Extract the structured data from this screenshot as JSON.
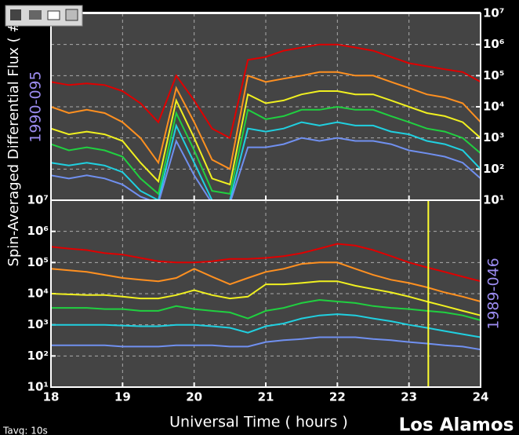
{
  "chart_data": [
    {
      "type": "line",
      "ylabel": "Spin-Averaged Differential Flux   ( #/",
      "label": "1990-095",
      "label_color": "#9c8cf0",
      "label_side": "left",
      "yscale": "log",
      "yaxis_side": "right",
      "grid": true,
      "show_xtick_labels": false,
      "xlim": [
        18,
        24
      ],
      "xticks": [
        18,
        19,
        20,
        21,
        22,
        23,
        24
      ],
      "ylim": [
        10,
        10000000
      ],
      "yticks": [
        {
          "value": 10,
          "label": "10¹"
        },
        {
          "value": 100,
          "label": "10²"
        },
        {
          "value": 1000,
          "label": "10³"
        },
        {
          "value": 10000,
          "label": "10⁴"
        },
        {
          "value": 100000,
          "label": "10⁵"
        },
        {
          "value": 1000000,
          "label": "10⁶"
        },
        {
          "value": 10000000,
          "label": "10⁷"
        }
      ],
      "x": [
        18,
        18.25,
        18.5,
        18.75,
        19,
        19.25,
        19.5,
        19.75,
        20,
        20.25,
        20.5,
        20.75,
        21,
        21.25,
        21.5,
        21.75,
        22,
        22.25,
        22.5,
        22.75,
        23,
        23.25,
        23.5,
        23.75,
        24
      ],
      "series": [
        {
          "color": "#e00000",
          "values": [
            63000.0,
            50000.0,
            56000.0,
            50000.0,
            32000.0,
            13000.0,
            3200.0,
            100000.0,
            16000.0,
            2000.0,
            1000.0,
            320000.0,
            400000.0,
            630000.0,
            800000.0,
            1000000.0,
            1000000.0,
            800000.0,
            630000.0,
            400000.0,
            250000.0,
            200000.0,
            160000.0,
            130000.0,
            63000.0
          ]
        },
        {
          "color": "#ff9020",
          "values": [
            10000.0,
            6300.0,
            8000.0,
            6300.0,
            3200.0,
            1000.0,
            160,
            40000.0,
            3200.0,
            200,
            100,
            100000.0,
            63000.0,
            80000.0,
            100000.0,
            130000.0,
            130000.0,
            100000.0,
            100000.0,
            63000.0,
            40000.0,
            25000.0,
            20000.0,
            13000.0,
            3200.0
          ]
        },
        {
          "color": "#f0f020",
          "values": [
            2000.0,
            1300.0,
            1600.0,
            1300.0,
            800,
            160,
            40,
            16000.0,
            1000.0,
            50,
            32,
            25000.0,
            13000.0,
            16000.0,
            25000.0,
            32000.0,
            32000.0,
            25000.0,
            25000.0,
            16000.0,
            10000.0,
            6300.0,
            5000.0,
            3200.0,
            1000.0
          ]
        },
        {
          "color": "#20d040",
          "values": [
            630,
            400,
            500,
            400,
            250,
            50,
            16,
            6300.0,
            400,
            20,
            16,
            8000.0,
            4000.0,
            5000.0,
            8000.0,
            8000.0,
            10000.0,
            8000.0,
            8000.0,
            5000.0,
            3200.0,
            2000.0,
            1600.0,
            1000.0,
            320
          ]
        },
        {
          "color": "#20d0e0",
          "values": [
            160,
            130,
            160,
            130,
            80,
            20,
            10,
            2500.0,
            160,
            10,
            10,
            2000.0,
            1600.0,
            2000.0,
            3200.0,
            2500.0,
            3200.0,
            2500.0,
            2500.0,
            1600.0,
            1300.0,
            800,
            630,
            400,
            100
          ]
        },
        {
          "color": "#7090f0",
          "values": [
            63,
            50,
            63,
            50,
            32,
            13,
            8,
            800,
            63,
            8,
            8,
            500,
            500,
            630,
            1000.0,
            800,
            1000.0,
            800,
            800,
            630,
            400,
            320,
            250,
            160,
            50
          ]
        }
      ]
    },
    {
      "type": "line",
      "xlabel": "Universal Time ( hours )",
      "label": "1989-046",
      "label_color": "#9c8cf0",
      "label_side": "right",
      "annotations": [
        "Los Alamos",
        "Tavg: 10s"
      ],
      "yscale": "log",
      "yaxis_side": "left",
      "grid": true,
      "show_xtick_labels": true,
      "xlim": [
        18,
        24
      ],
      "xticks": [
        18,
        19,
        20,
        21,
        22,
        23,
        24
      ],
      "ylim": [
        10,
        10000000
      ],
      "yticks": [
        {
          "value": 10,
          "label": "10¹"
        },
        {
          "value": 100,
          "label": "10²"
        },
        {
          "value": 1000,
          "label": "10³"
        },
        {
          "value": 10000,
          "label": "10⁴"
        },
        {
          "value": 100000,
          "label": "10⁵"
        },
        {
          "value": 1000000,
          "label": "10⁶"
        },
        {
          "value": 10000000,
          "label": "10⁷"
        }
      ],
      "vline": {
        "x": 23.27,
        "color": "#ffff30"
      },
      "x": [
        18,
        18.25,
        18.5,
        18.75,
        19,
        19.25,
        19.5,
        19.75,
        20,
        20.25,
        20.5,
        20.75,
        21,
        21.25,
        21.5,
        21.75,
        22,
        22.25,
        22.5,
        22.75,
        23,
        23.25,
        23.5,
        23.75,
        24
      ],
      "series": [
        {
          "color": "#e00000",
          "values": [
            320000.0,
            280000.0,
            250000.0,
            200000.0,
            180000.0,
            140000.0,
            110000.0,
            100000.0,
            100000.0,
            110000.0,
            130000.0,
            130000.0,
            140000.0,
            160000.0,
            200000.0,
            280000.0,
            400000.0,
            350000.0,
            250000.0,
            160000.0,
            100000.0,
            70000.0,
            50000.0,
            35000.0,
            25000.0
          ]
        },
        {
          "color": "#ff9020",
          "values": [
            63000.0,
            56000.0,
            50000.0,
            40000.0,
            32000.0,
            28000.0,
            25000.0,
            32000.0,
            63000.0,
            35000.0,
            20000.0,
            32000.0,
            50000.0,
            63000.0,
            90000.0,
            100000.0,
            100000.0,
            63000.0,
            40000.0,
            28000.0,
            22000.0,
            16000.0,
            11000.0,
            8000.0,
            5600.0
          ]
        },
        {
          "color": "#f0f020",
          "values": [
            10000.0,
            9500.0,
            9000.0,
            9000.0,
            8000.0,
            7000.0,
            7000.0,
            9000.0,
            13000.0,
            9000.0,
            7000.0,
            8000.0,
            20000.0,
            20000.0,
            22000.0,
            25000.0,
            25000.0,
            18000.0,
            14000.0,
            11000.0,
            8000.0,
            5600.0,
            4000.0,
            2800.0,
            2000.0
          ]
        },
        {
          "color": "#20d040",
          "values": [
            3500.0,
            3500.0,
            3500.0,
            3200.0,
            3200.0,
            2800.0,
            2800.0,
            4000.0,
            3200.0,
            2800.0,
            2500.0,
            1600.0,
            2800.0,
            3500.0,
            5000.0,
            6300.0,
            5600.0,
            5000.0,
            4000.0,
            3500.0,
            3200.0,
            2800.0,
            2500.0,
            2000.0,
            1400.0
          ]
        },
        {
          "color": "#20d0e0",
          "values": [
            1000.0,
            1000.0,
            1000.0,
            1000.0,
            950,
            900,
            900,
            1000.0,
            1000.0,
            900,
            800,
            560,
            900,
            1100.0,
            1600.0,
            2000.0,
            2200.0,
            2000.0,
            1600.0,
            1300.0,
            1000.0,
            800,
            630,
            500,
            400
          ]
        },
        {
          "color": "#7090f0",
          "values": [
            220,
            220,
            220,
            220,
            200,
            200,
            200,
            220,
            220,
            220,
            200,
            200,
            280,
            320,
            350,
            400,
            400,
            400,
            350,
            320,
            280,
            250,
            220,
            200,
            160
          ]
        }
      ]
    }
  ]
}
